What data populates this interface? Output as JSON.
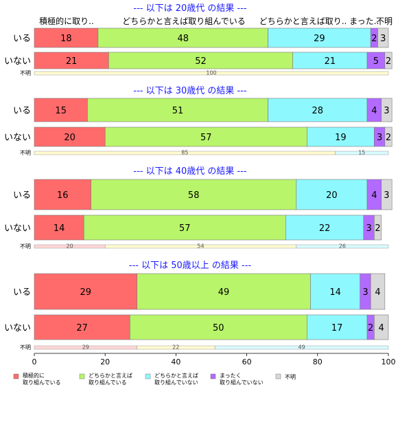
{
  "chart_data": {
    "type": "bar",
    "orientation": "horizontal",
    "stacked": true,
    "xlim": [
      0,
      100
    ],
    "x_ticks": [
      0,
      20,
      40,
      60,
      80,
      100
    ],
    "grid": false,
    "legend_position": "bottom",
    "top_category_labels": [
      "積極的に取り..",
      "どちらかと言えば取り組んでいる",
      "どちらかと言えば取り.. まった..",
      "不明"
    ],
    "series": [
      {
        "key": "s1",
        "name": "積極的に\n取り組んでいる",
        "color": "#ff6b6b"
      },
      {
        "key": "s2",
        "name": "どちらかと言えば\n取り組んでいる",
        "color": "#b8f56a"
      },
      {
        "key": "s3",
        "name": "どちらかと言えば\n取り組んでいない",
        "color": "#8ef8ff"
      },
      {
        "key": "s4",
        "name": "まったく\n取り組んでいない",
        "color": "#b36bff"
      },
      {
        "key": "s5",
        "name": "不明",
        "color": "#d9d9d9"
      }
    ],
    "groups": [
      {
        "title": "--- 以下は 20歳代 の結果 ---",
        "rows": [
          {
            "label": "いる",
            "values": [
              18,
              48,
              29,
              2,
              3
            ]
          },
          {
            "label": "いない",
            "values": [
              21,
              52,
              21,
              5,
              2
            ]
          }
        ],
        "unknown": {
          "label": "不明",
          "values": [
            0,
            100,
            0,
            0,
            0
          ],
          "show_labels": [
            false,
            true,
            false,
            false,
            false
          ]
        }
      },
      {
        "title": "--- 以下は 30歳代 の結果 ---",
        "rows": [
          {
            "label": "いる",
            "values": [
              15,
              51,
              28,
              4,
              3
            ]
          },
          {
            "label": "いない",
            "values": [
              20,
              57,
              19,
              3,
              2
            ]
          }
        ],
        "unknown": {
          "label": "不明",
          "values": [
            0,
            85,
            15,
            0,
            0
          ],
          "show_labels": [
            false,
            true,
            true,
            false,
            false
          ]
        }
      },
      {
        "title": "--- 以下は 40歳代 の結果 ---",
        "rows": [
          {
            "label": "いる",
            "values": [
              16,
              58,
              20,
              4,
              3
            ]
          },
          {
            "label": "いない",
            "values": [
              14,
              57,
              22,
              3,
              2
            ]
          }
        ],
        "unknown": {
          "label": "不明",
          "values": [
            20,
            54,
            26,
            0,
            0
          ],
          "show_labels": [
            true,
            true,
            true,
            false,
            false
          ]
        }
      },
      {
        "title": "--- 以下は 50歳以上 の結果 ---",
        "rows": [
          {
            "label": "いる",
            "values": [
              29,
              49,
              14,
              3,
              4
            ]
          },
          {
            "label": "いない",
            "values": [
              27,
              50,
              17,
              2,
              4
            ]
          }
        ],
        "unknown": {
          "label": "不明",
          "values": [
            29,
            22,
            49,
            0,
            0
          ],
          "show_labels": [
            true,
            true,
            true,
            false,
            false
          ]
        }
      }
    ]
  }
}
